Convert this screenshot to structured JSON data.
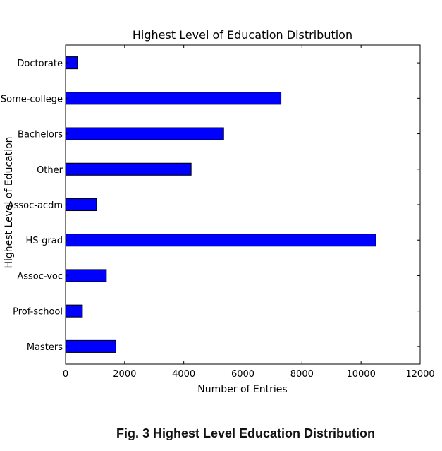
{
  "chart_data": {
    "type": "bar",
    "orientation": "horizontal",
    "title": "Highest Level of Education Distribution",
    "xlabel": "Number of Entries",
    "ylabel": "Highest Level of Education",
    "categories": [
      "Doctorate",
      "Some-college",
      "Bachelors",
      "Other",
      "Assoc-acdm",
      "HS-grad",
      "Assoc-voc",
      "Prof-school",
      "Masters"
    ],
    "values": [
      400,
      7290,
      5350,
      4250,
      1050,
      10500,
      1380,
      570,
      1700
    ],
    "xlim": [
      0,
      12000
    ],
    "xticks": [
      "0",
      "2000",
      "4000",
      "6000",
      "8000",
      "10000",
      "12000"
    ],
    "grid": false,
    "bar_color": "#0000ff"
  },
  "caption": "Fig. 3 Highest Level Education Distribution"
}
